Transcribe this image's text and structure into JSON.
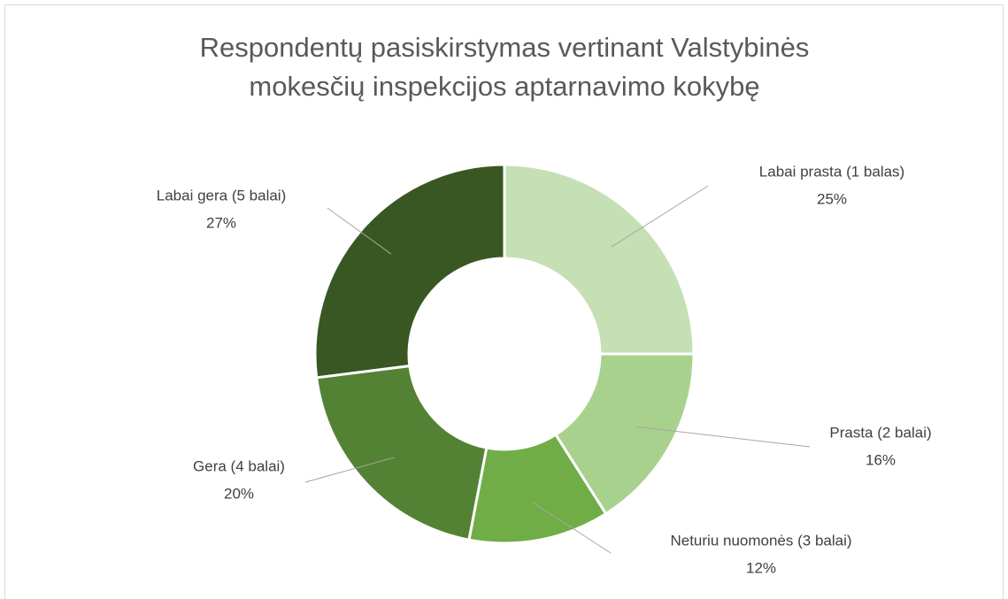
{
  "chart_data": {
    "type": "donut",
    "title": "Respondentų pasiskirstymas vertinant Valstybinės mokesčių inspekcijos aptarnavimo kokybę",
    "categories": [
      "Labai prasta (1 balas)",
      "Prasta (2 balai)",
      "Neturiu nuomonės (3 balai)",
      "Gera (4 balai)",
      "Labai gera (5 balai)"
    ],
    "values": [
      25,
      16,
      12,
      20,
      27
    ],
    "value_labels": [
      "25%",
      "16%",
      "12%",
      "20%",
      "27%"
    ],
    "colors": [
      "#c5e0b4",
      "#a9d18e",
      "#70ad47",
      "#548235",
      "#385723"
    ]
  }
}
